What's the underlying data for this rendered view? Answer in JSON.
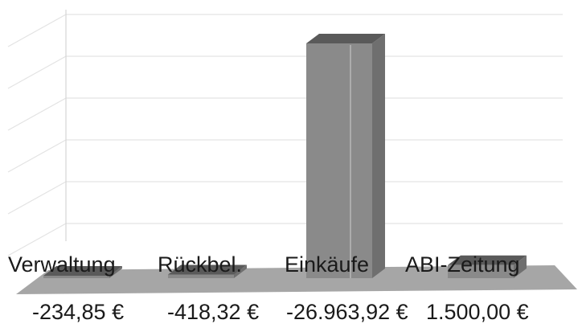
{
  "chart_data": {
    "type": "bar",
    "view": "3d",
    "categories": [
      "Verwaltung",
      "Rückbel.",
      "Einkäufe",
      "ABI-Zeitung"
    ],
    "values": [
      -234.85,
      -418.32,
      -26963.92,
      1500.0
    ],
    "value_labels": [
      "-234,85 €",
      "-418,32 €",
      "-26.963,92 €",
      "1.500,00 €"
    ],
    "title": "",
    "xlabel": "",
    "ylabel": "",
    "grid": true,
    "legend": "none",
    "colors": {
      "bar_front": "#8a8a8a",
      "bar_side": "#6f6f6f",
      "bar_top": "#5a5a5a",
      "floor": "#a6a6a6",
      "grid": "#e3e3e3",
      "text": "#1a1a1a"
    }
  }
}
